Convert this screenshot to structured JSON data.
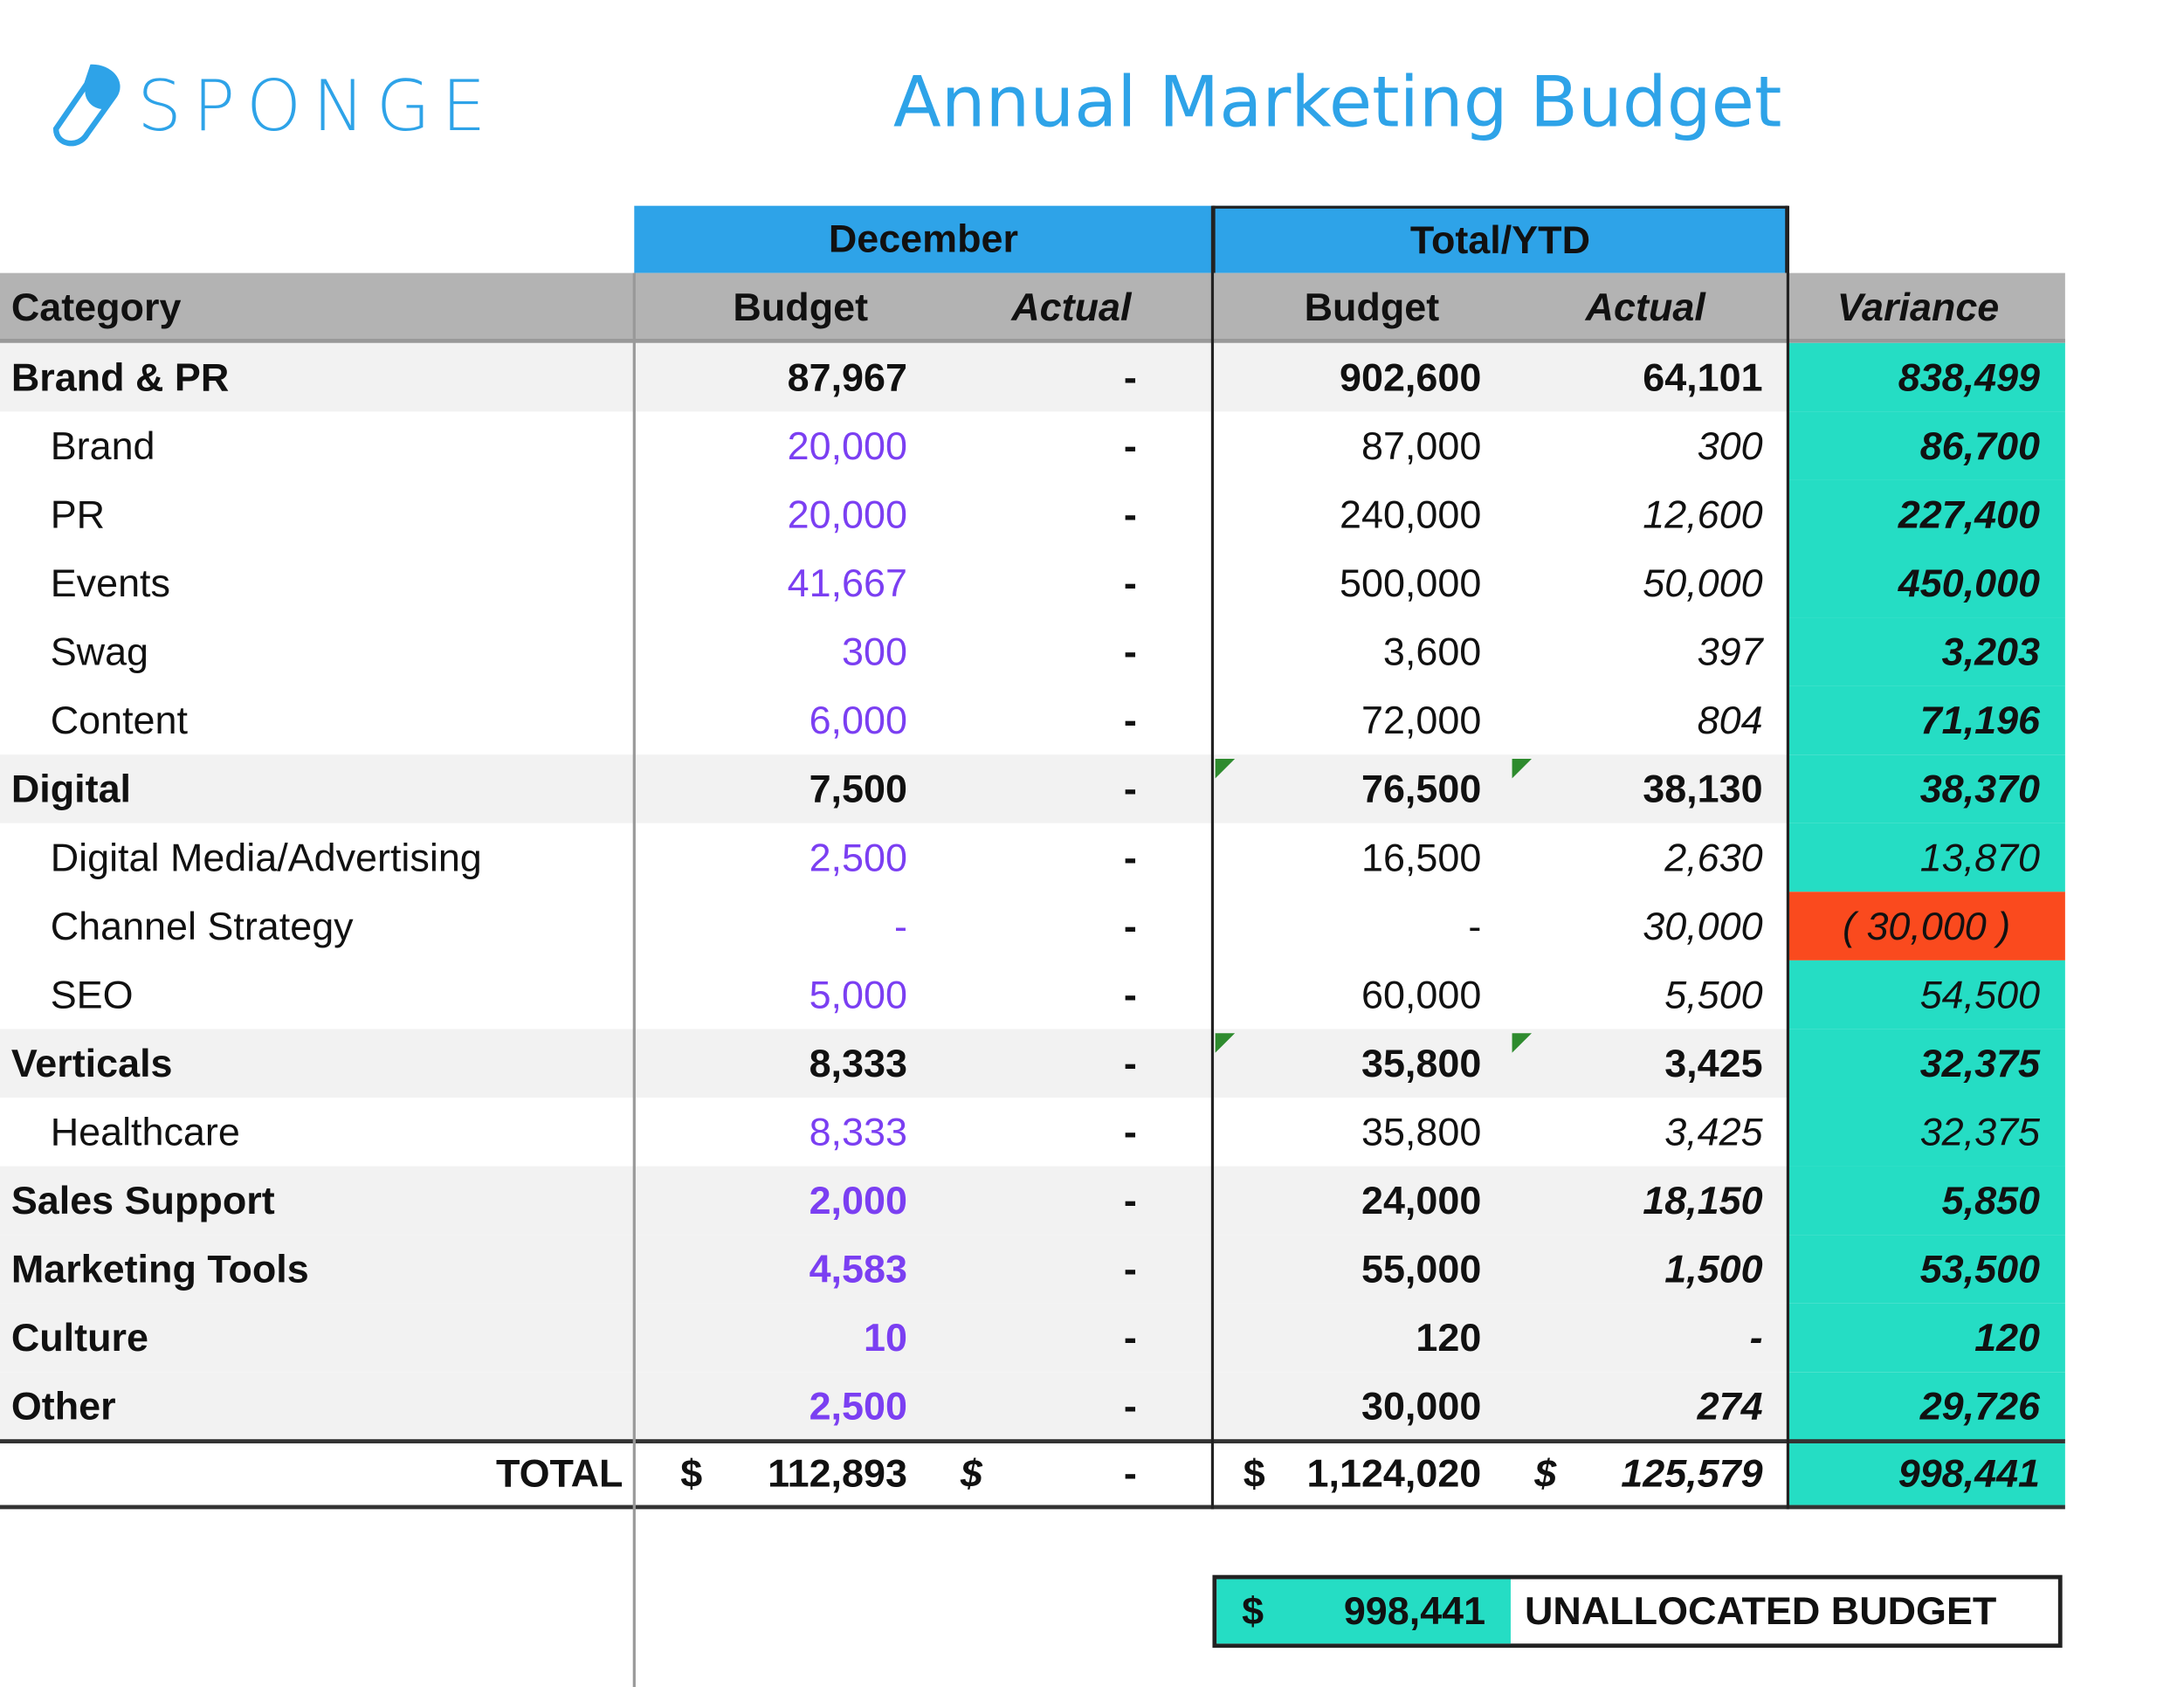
{
  "brand": {
    "name": "SPONGE",
    "icon": "sponge-logo-icon"
  },
  "title": "Annual Marketing Budget",
  "groups": {
    "december": "December",
    "ytd": "Total/YTD"
  },
  "headers": {
    "category": "Category",
    "dec_budget": "Budget",
    "dec_actual": "Actual",
    "ytd_budget": "Budget",
    "ytd_actual": "Actual",
    "variance": "Variance"
  },
  "rows": [
    {
      "category": "Brand & PR",
      "type": "group",
      "dec_budget": "87,967",
      "dec_actual": "-",
      "ytd_budget": "902,600",
      "ytd_actual": "64,101",
      "variance": "838,499"
    },
    {
      "category": "Brand",
      "type": "sub",
      "dec_budget": "20,000",
      "dec_actual": "-",
      "ytd_budget": "87,000",
      "ytd_actual": "300",
      "variance": "86,700"
    },
    {
      "category": "PR",
      "type": "sub",
      "dec_budget": "20,000",
      "dec_actual": "-",
      "ytd_budget": "240,000",
      "ytd_actual": "12,600",
      "variance": "227,400"
    },
    {
      "category": "Events",
      "type": "sub",
      "dec_budget": "41,667",
      "dec_actual": "-",
      "ytd_budget": "500,000",
      "ytd_actual": "50,000",
      "variance": "450,000"
    },
    {
      "category": "Swag",
      "type": "sub",
      "dec_budget": "300",
      "dec_actual": "-",
      "ytd_budget": "3,600",
      "ytd_actual": "397",
      "variance": "3,203"
    },
    {
      "category": "Content",
      "type": "sub",
      "dec_budget": "6,000",
      "dec_actual": "-",
      "ytd_budget": "72,000",
      "ytd_actual": "804",
      "variance": "71,196"
    },
    {
      "category": "Digital",
      "type": "group",
      "dec_budget": "7,500",
      "dec_actual": "-",
      "ytd_budget": "76,500",
      "ytd_actual": "38,130",
      "variance": "38,370",
      "comment": true
    },
    {
      "category": "Digital Media/Advertising",
      "type": "sub2",
      "dec_budget": "2,500",
      "dec_actual": "-",
      "ytd_budget": "16,500",
      "ytd_actual": "2,630",
      "variance": "13,870"
    },
    {
      "category": "Channel Strategy",
      "type": "sub2",
      "dec_budget": "-",
      "dec_actual": "-",
      "ytd_budget": "-",
      "ytd_actual": "30,000",
      "variance": "( 30,000 )",
      "negative": true
    },
    {
      "category": "SEO",
      "type": "sub2",
      "dec_budget": "5,000",
      "dec_actual": "-",
      "ytd_budget": "60,000",
      "ytd_actual": "5,500",
      "variance": "54,500"
    },
    {
      "category": "Verticals",
      "type": "group",
      "dec_budget": "8,333",
      "dec_actual": "-",
      "ytd_budget": "35,800",
      "ytd_actual": "3,425",
      "variance": "32,375",
      "comment": true
    },
    {
      "category": "Healthcare",
      "type": "sub2",
      "dec_budget": "8,333",
      "dec_actual": "-",
      "ytd_budget": "35,800",
      "ytd_actual": "3,425",
      "variance": "32,375"
    },
    {
      "category": "Sales Support",
      "type": "single",
      "dec_budget": "2,000",
      "dec_actual": "-",
      "ytd_budget": "24,000",
      "ytd_actual": "18,150",
      "variance": "5,850"
    },
    {
      "category": "Marketing Tools",
      "type": "single",
      "dec_budget": "4,583",
      "dec_actual": "-",
      "ytd_budget": "55,000",
      "ytd_actual": "1,500",
      "variance": "53,500"
    },
    {
      "category": "Culture",
      "type": "single",
      "dec_budget": "10",
      "dec_actual": "-",
      "ytd_budget": "120",
      "ytd_actual": "-",
      "variance": "120"
    },
    {
      "category": "Other",
      "type": "single",
      "dec_budget": "2,500",
      "dec_actual": "-",
      "ytd_budget": "30,000",
      "ytd_actual": "274",
      "variance": "29,726"
    }
  ],
  "total": {
    "label": "TOTAL",
    "currency": "$",
    "dec_budget": "112,893",
    "dec_actual": "-",
    "ytd_budget": "1,124,020",
    "ytd_actual": "125,579",
    "variance": "998,441"
  },
  "unallocated": {
    "currency": "$",
    "amount": "998,441",
    "label": "UNALLOCATED BUDGET"
  },
  "colors": {
    "accent": "#2ea3e8",
    "header_gray": "#b3b3b3",
    "variance": "#25ddc4",
    "negative": "#fa4a1e",
    "december_budget": "#7b3ff2"
  }
}
